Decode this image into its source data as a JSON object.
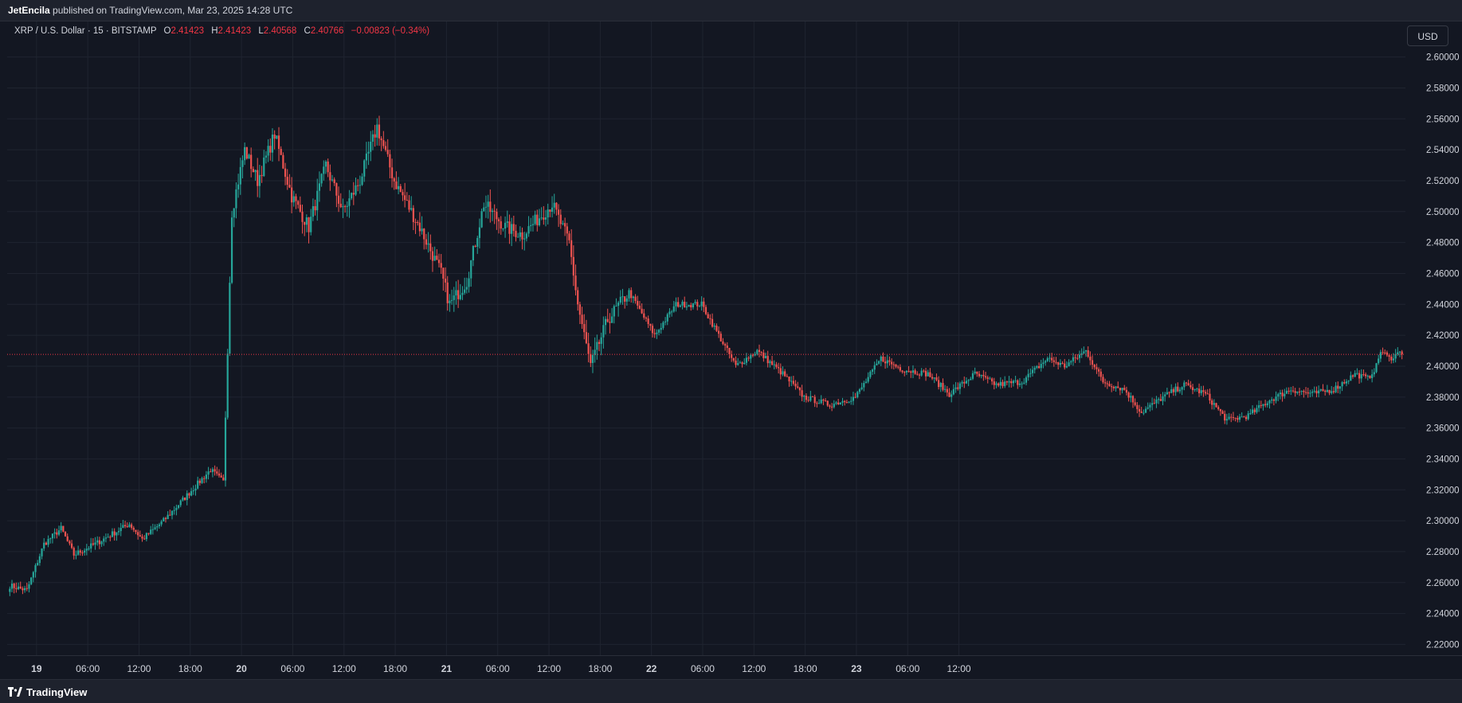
{
  "header": {
    "user": "JetEncila",
    "published_text": "published on TradingView.com, Mar 23, 2025 14:28 UTC"
  },
  "legend": {
    "symbol": "XRP / U.S. Dollar · 15 · BITSTAMP",
    "o_label": "O",
    "o_value": "2.41423",
    "h_label": "H",
    "h_value": "2.41423",
    "l_label": "L",
    "l_value": "2.40568",
    "c_label": "C",
    "c_value": "2.40766",
    "change": "−0.00823 (−0.34%)"
  },
  "currency_button": "USD",
  "footer": {
    "brand": "TradingView",
    "logo_icon": "tradingview-logo-icon"
  },
  "colors": {
    "up": "#26a69a",
    "down": "#ef5350",
    "last_price": "#f23645",
    "bg": "#131722",
    "grid": "#1f2430"
  },
  "chart_data": {
    "type": "candlestick",
    "symbol": "XRP / U.S. Dollar",
    "interval": "15",
    "exchange": "BITSTAMP",
    "last_price": "2.40766",
    "last_price_value": 2.40766,
    "ylim": [
      2.213,
      2.623
    ],
    "y_ticks": [
      "2.60000",
      "2.58000",
      "2.56000",
      "2.54000",
      "2.52000",
      "2.50000",
      "2.48000",
      "2.46000",
      "2.44000",
      "2.42000",
      "2.40000",
      "2.38000",
      "2.36000",
      "2.34000",
      "2.32000",
      "2.30000",
      "2.28000",
      "2.26000",
      "2.24000",
      "2.22000"
    ],
    "x_ticks": [
      "19",
      "06:00",
      "12:00",
      "18:00",
      "20",
      "06:00",
      "12:00",
      "18:00",
      "21",
      "06:00",
      "12:00",
      "18:00",
      "22",
      "06:00",
      "12:00",
      "18:00",
      "23",
      "06:00",
      "12:00"
    ],
    "x_ticks_bold": [
      true,
      false,
      false,
      false,
      true,
      false,
      false,
      false,
      true,
      false,
      false,
      false,
      true,
      false,
      false,
      false,
      true,
      false,
      false
    ],
    "anchors": [
      {
        "i": 0,
        "p": 2.258
      },
      {
        "i": 8,
        "p": 2.255
      },
      {
        "i": 16,
        "p": 2.285
      },
      {
        "i": 24,
        "p": 2.295
      },
      {
        "i": 30,
        "p": 2.278
      },
      {
        "i": 40,
        "p": 2.285
      },
      {
        "i": 56,
        "p": 2.298
      },
      {
        "i": 62,
        "p": 2.288
      },
      {
        "i": 72,
        "p": 2.3
      },
      {
        "i": 84,
        "p": 2.318
      },
      {
        "i": 94,
        "p": 2.333
      },
      {
        "i": 100,
        "p": 2.325
      },
      {
        "i": 104,
        "p": 2.5
      },
      {
        "i": 110,
        "p": 2.54
      },
      {
        "i": 116,
        "p": 2.52
      },
      {
        "i": 124,
        "p": 2.55
      },
      {
        "i": 132,
        "p": 2.51
      },
      {
        "i": 140,
        "p": 2.49
      },
      {
        "i": 148,
        "p": 2.53
      },
      {
        "i": 156,
        "p": 2.5
      },
      {
        "i": 164,
        "p": 2.52
      },
      {
        "i": 172,
        "p": 2.555
      },
      {
        "i": 180,
        "p": 2.52
      },
      {
        "i": 192,
        "p": 2.49
      },
      {
        "i": 202,
        "p": 2.46
      },
      {
        "i": 206,
        "p": 2.44
      },
      {
        "i": 214,
        "p": 2.455
      },
      {
        "i": 222,
        "p": 2.505
      },
      {
        "i": 232,
        "p": 2.49
      },
      {
        "i": 240,
        "p": 2.485
      },
      {
        "i": 254,
        "p": 2.505
      },
      {
        "i": 262,
        "p": 2.48
      },
      {
        "i": 266,
        "p": 2.44
      },
      {
        "i": 272,
        "p": 2.4
      },
      {
        "i": 280,
        "p": 2.43
      },
      {
        "i": 290,
        "p": 2.448
      },
      {
        "i": 302,
        "p": 2.42
      },
      {
        "i": 312,
        "p": 2.44
      },
      {
        "i": 324,
        "p": 2.44
      },
      {
        "i": 332,
        "p": 2.42
      },
      {
        "i": 340,
        "p": 2.4
      },
      {
        "i": 350,
        "p": 2.41
      },
      {
        "i": 362,
        "p": 2.395
      },
      {
        "i": 372,
        "p": 2.38
      },
      {
        "i": 384,
        "p": 2.375
      },
      {
        "i": 396,
        "p": 2.38
      },
      {
        "i": 408,
        "p": 2.405
      },
      {
        "i": 418,
        "p": 2.398
      },
      {
        "i": 430,
        "p": 2.395
      },
      {
        "i": 440,
        "p": 2.382
      },
      {
        "i": 452,
        "p": 2.395
      },
      {
        "i": 462,
        "p": 2.388
      },
      {
        "i": 474,
        "p": 2.39
      },
      {
        "i": 486,
        "p": 2.405
      },
      {
        "i": 494,
        "p": 2.4
      },
      {
        "i": 504,
        "p": 2.41
      },
      {
        "i": 512,
        "p": 2.39
      },
      {
        "i": 522,
        "p": 2.385
      },
      {
        "i": 530,
        "p": 2.37
      },
      {
        "i": 540,
        "p": 2.38
      },
      {
        "i": 550,
        "p": 2.388
      },
      {
        "i": 560,
        "p": 2.382
      },
      {
        "i": 570,
        "p": 2.365
      },
      {
        "i": 580,
        "p": 2.368
      },
      {
        "i": 590,
        "p": 2.378
      },
      {
        "i": 600,
        "p": 2.385
      },
      {
        "i": 610,
        "p": 2.382
      },
      {
        "i": 620,
        "p": 2.385
      },
      {
        "i": 630,
        "p": 2.395
      },
      {
        "i": 636,
        "p": 2.392
      },
      {
        "i": 640,
        "p": 2.4
      },
      {
        "i": 642,
        "p": 2.41
      },
      {
        "i": 646,
        "p": 2.405
      },
      {
        "i": 650,
        "p": 2.408
      },
      {
        "i": 652,
        "p": 2.41423
      }
    ]
  }
}
